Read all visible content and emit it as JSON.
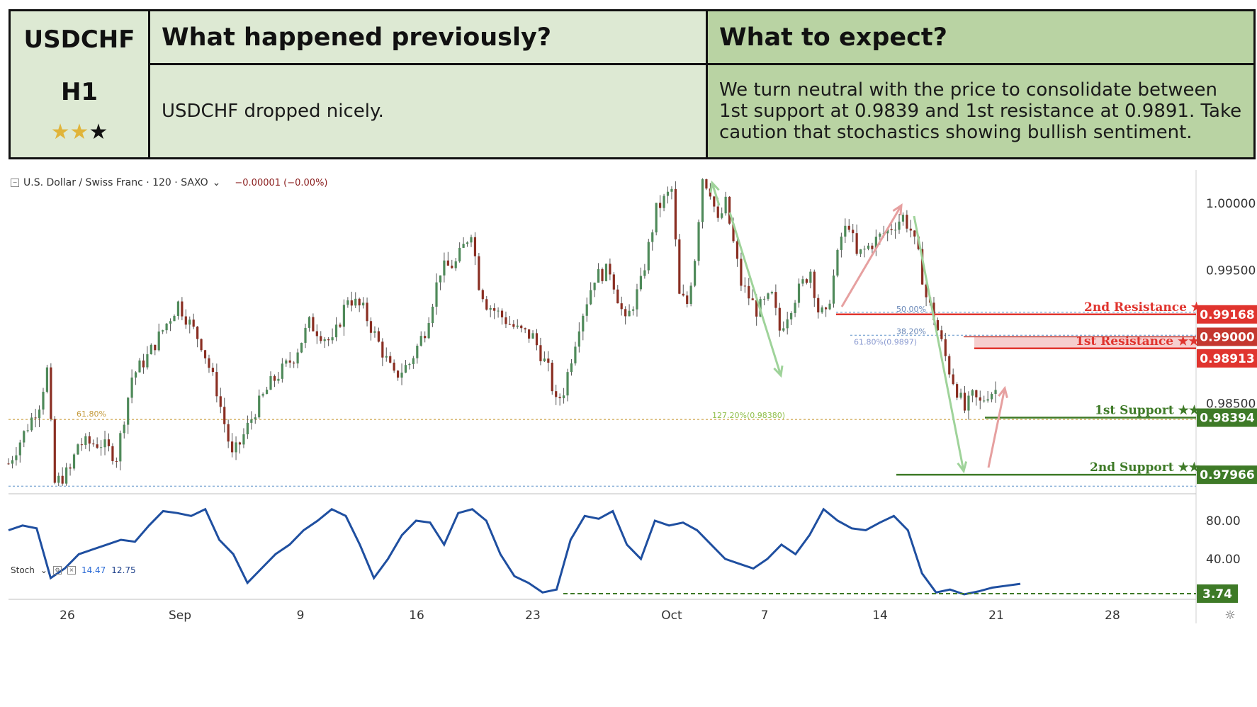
{
  "header": {
    "pair": "USDCHF",
    "timeframe": "H1",
    "rating": {
      "filled": 2,
      "total": 3
    },
    "prev_title": "What happened previously?",
    "exp_title": "What to expect?",
    "prev_text": "USDCHF dropped nicely.",
    "exp_text": "We turn neutral with the price to consolidate between 1st support at 0.9839 and 1st resistance at 0.9891. Take caution that stochastics showing bullish sentiment."
  },
  "chart_meta": {
    "symbol_label": "U.S. Dollar / Swiss Franc · 120 · SAXO",
    "change": "−0.00001 (−0.00%)",
    "stoch_label": "Stoch",
    "stoch_k": "14.47",
    "stoch_d": "12.75"
  },
  "colors": {
    "resistance": "#e0342e",
    "support": "#3e7a27",
    "resistance_zone": "#f4c6c6",
    "stoch_line": "#1f4fa0",
    "candle_up": "#4f8a5a",
    "candle_down": "#8a2e22",
    "arrow_down": "#9fd39a",
    "arrow_up": "#e6a0a0"
  },
  "chart_data": [
    {
      "type": "candlestick",
      "title": "U.S. Dollar / Swiss Franc · 120 · SAXO",
      "x_tick_labels": [
        "26",
        "Sep",
        "9",
        "16",
        "23",
        "Oct",
        "7",
        "14",
        "21",
        "28"
      ],
      "y_tick_labels": [
        "1.00000",
        "0.99500",
        "0.98500"
      ],
      "ylim": [
        0.9785,
        1.0025
      ],
      "price_path": [
        [
          0,
          0.9805
        ],
        [
          4,
          0.985
        ],
        [
          5,
          0.9875
        ],
        [
          6,
          0.979
        ],
        [
          8,
          0.98
        ],
        [
          9,
          0.982
        ],
        [
          12,
          0.982
        ],
        [
          14,
          0.981
        ],
        [
          16,
          0.987
        ],
        [
          18,
          0.9885
        ],
        [
          20,
          0.9905
        ],
        [
          22,
          0.9925
        ],
        [
          25,
          0.9895
        ],
        [
          27,
          0.986
        ],
        [
          29,
          0.981
        ],
        [
          30,
          0.982
        ],
        [
          32,
          0.9845
        ],
        [
          34,
          0.9865
        ],
        [
          37,
          0.9885
        ],
        [
          39,
          0.991
        ],
        [
          42,
          0.9895
        ],
        [
          44,
          0.993
        ],
        [
          46,
          0.992
        ],
        [
          48,
          0.9895
        ],
        [
          50,
          0.987
        ],
        [
          52,
          0.988
        ],
        [
          54,
          0.9905
        ],
        [
          56,
          0.995
        ],
        [
          58,
          0.9955
        ],
        [
          60,
          0.998
        ],
        [
          61,
          0.994
        ],
        [
          62,
          0.9925
        ],
        [
          64,
          0.9915
        ],
        [
          66,
          0.9905
        ],
        [
          68,
          0.99
        ],
        [
          70,
          0.9875
        ],
        [
          71,
          0.985
        ],
        [
          72,
          0.986
        ],
        [
          74,
          0.991
        ],
        [
          76,
          0.9945
        ],
        [
          78,
          0.995
        ],
        [
          80,
          0.991
        ],
        [
          82,
          0.994
        ],
        [
          84,
          0.9995
        ],
        [
          86,
          1.001
        ],
        [
          87,
          0.993
        ],
        [
          88,
          0.9925
        ],
        [
          89,
          0.996
        ],
        [
          90,
          1.002
        ],
        [
          91,
          1.001
        ],
        [
          92,
          0.9985
        ],
        [
          93,
          1.0
        ],
        [
          94,
          0.997
        ],
        [
          95,
          0.994
        ],
        [
          97,
          0.992
        ],
        [
          99,
          0.993
        ],
        [
          100,
          0.9905
        ],
        [
          102,
          0.993
        ],
        [
          104,
          0.995
        ],
        [
          105,
          0.992
        ],
        [
          106,
          0.9915
        ],
        [
          108,
          0.9975
        ],
        [
          109,
          0.9985
        ],
        [
          110,
          0.996
        ],
        [
          112,
          0.997
        ],
        [
          114,
          0.998
        ],
        [
          116,
          0.999
        ],
        [
          117,
          0.998
        ],
        [
          118,
          0.996
        ],
        [
          119,
          0.993
        ],
        [
          120,
          0.9915
        ],
        [
          121,
          0.9895
        ],
        [
          122,
          0.9875
        ],
        [
          123,
          0.986
        ],
        [
          124,
          0.9845
        ],
        [
          125,
          0.9855
        ],
        [
          126,
          0.985
        ],
        [
          127,
          0.9858
        ],
        [
          128,
          0.986
        ]
      ],
      "x_range": [
        0,
        154
      ]
    },
    {
      "type": "horizontal_levels",
      "levels": [
        {
          "name": "2nd Resistance ★",
          "value": 0.99168,
          "label": "0.99168",
          "role": "resistance"
        },
        {
          "name": "1st Resistance ★★",
          "value": 0.98913,
          "label": "0.98913",
          "role": "resistance"
        },
        {
          "name": "",
          "value": 0.99,
          "label": "0.99000",
          "role": "marker"
        },
        {
          "name": "1st Support ★★",
          "value": 0.98394,
          "label": "0.98394",
          "role": "support"
        },
        {
          "name": "2nd Support ★★",
          "value": 0.97966,
          "label": "0.97966",
          "role": "support"
        }
      ],
      "fib_labels": [
        "50.00%",
        "61.80%(0.9897)",
        "38.20%",
        "61.80%",
        "127.20%(0.98380)"
      ]
    },
    {
      "type": "line",
      "name": "Stoch",
      "ylim": [
        0,
        100
      ],
      "y_tick_labels": [
        "80.00",
        "40.00"
      ],
      "level_marker": {
        "value": 3.74,
        "label": "3.74"
      },
      "values": [
        70,
        75,
        72,
        20,
        30,
        45,
        50,
        55,
        60,
        58,
        75,
        90,
        88,
        85,
        92,
        60,
        45,
        15,
        30,
        45,
        55,
        70,
        80,
        92,
        85,
        55,
        20,
        40,
        65,
        80,
        78,
        55,
        88,
        92,
        80,
        45,
        22,
        15,
        5,
        8,
        60,
        85,
        82,
        90,
        55,
        40,
        80,
        75,
        78,
        70,
        55,
        40,
        35,
        30,
        40,
        55,
        45,
        65,
        92,
        80,
        72,
        70,
        78,
        85,
        70,
        25,
        5,
        8,
        3,
        6,
        10,
        12,
        14
      ]
    }
  ]
}
